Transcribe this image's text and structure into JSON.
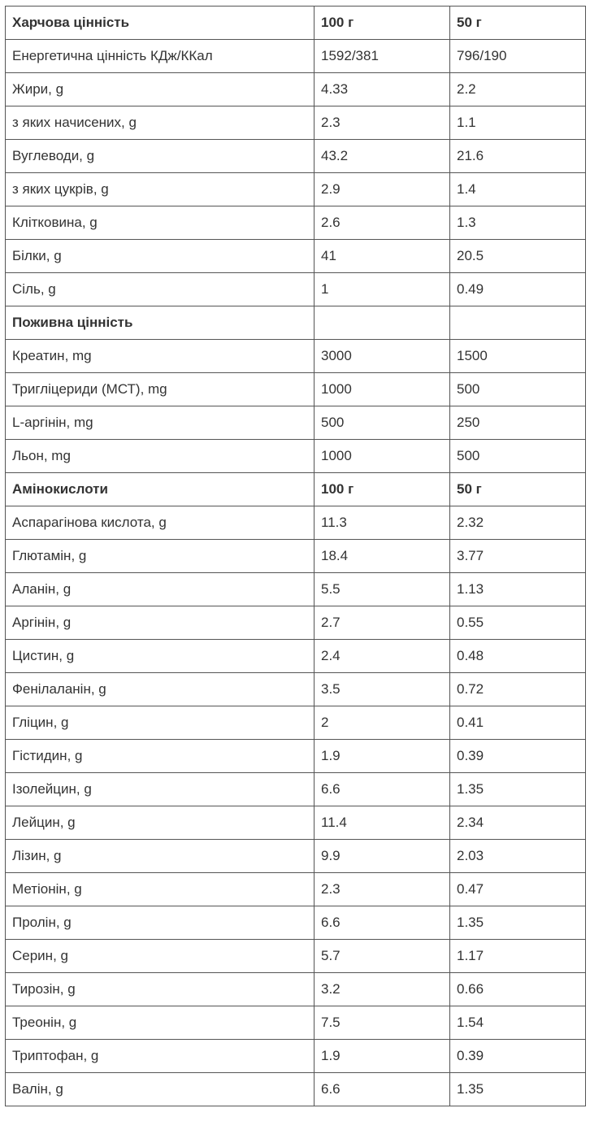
{
  "sections": [
    {
      "header": [
        "Харчова цінність",
        "100 г",
        "50 г"
      ],
      "rows": [
        [
          "Енергетична цінність КДж/ККал",
          "1592/381",
          "796/190"
        ],
        [
          "Жири, g",
          "4.33",
          "2.2"
        ],
        [
          "з яких начисених, g",
          "2.3",
          "1.1"
        ],
        [
          "Вуглеводи, g",
          "43.2",
          "21.6"
        ],
        [
          "з яких цукрів, g",
          "2.9",
          "1.4"
        ],
        [
          "Клітковина, g",
          "2.6",
          "1.3"
        ],
        [
          "Білки, g",
          "41",
          "20.5"
        ],
        [
          "Сіль, g",
          "1",
          "0.49"
        ]
      ]
    },
    {
      "header": [
        "Поживна цінність"
      ],
      "rows": [
        [
          "Креатин, mg",
          "3000",
          "1500"
        ],
        [
          "Тригліцериди (МСТ), mg",
          "1000",
          "500"
        ],
        [
          "L-аргінін, mg",
          "500",
          "250"
        ],
        [
          "Льон, mg",
          "1000",
          "500"
        ]
      ]
    },
    {
      "header": [
        "Амінокислоти",
        "100 г",
        "50 г"
      ],
      "rows": [
        [
          "Аспарагінова кислота, g",
          "11.3",
          "2.32"
        ],
        [
          "Глютамін, g",
          "18.4",
          "3.77"
        ],
        [
          "Аланін, g",
          "5.5",
          "1.13"
        ],
        [
          "Аргінін, g",
          "2.7",
          "0.55"
        ],
        [
          "Цистин, g",
          "2.4",
          "0.48"
        ],
        [
          "Фенілаланін, g",
          "3.5",
          "0.72"
        ],
        [
          "Гліцин, g",
          "2",
          "0.41"
        ],
        [
          "Гістидин, g",
          "1.9",
          "0.39"
        ],
        [
          "Ізолейцин, g",
          "6.6",
          "1.35"
        ],
        [
          "Лейцин, g",
          "11.4",
          "2.34"
        ],
        [
          "Лізин, g",
          "9.9",
          "2.03"
        ],
        [
          "Метіонін, g",
          "2.3",
          "0.47"
        ],
        [
          "Пролін, g",
          "6.6",
          "1.35"
        ],
        [
          "Серин, g",
          "5.7",
          "1.17"
        ],
        [
          "Тирозін, g",
          "3.2",
          "0.66"
        ],
        [
          "Треонін, g",
          "7.5",
          "1.54"
        ],
        [
          "Триптофан, g",
          "1.9",
          "0.39"
        ],
        [
          "Валін, g",
          "6.6",
          "1.35"
        ]
      ]
    }
  ]
}
